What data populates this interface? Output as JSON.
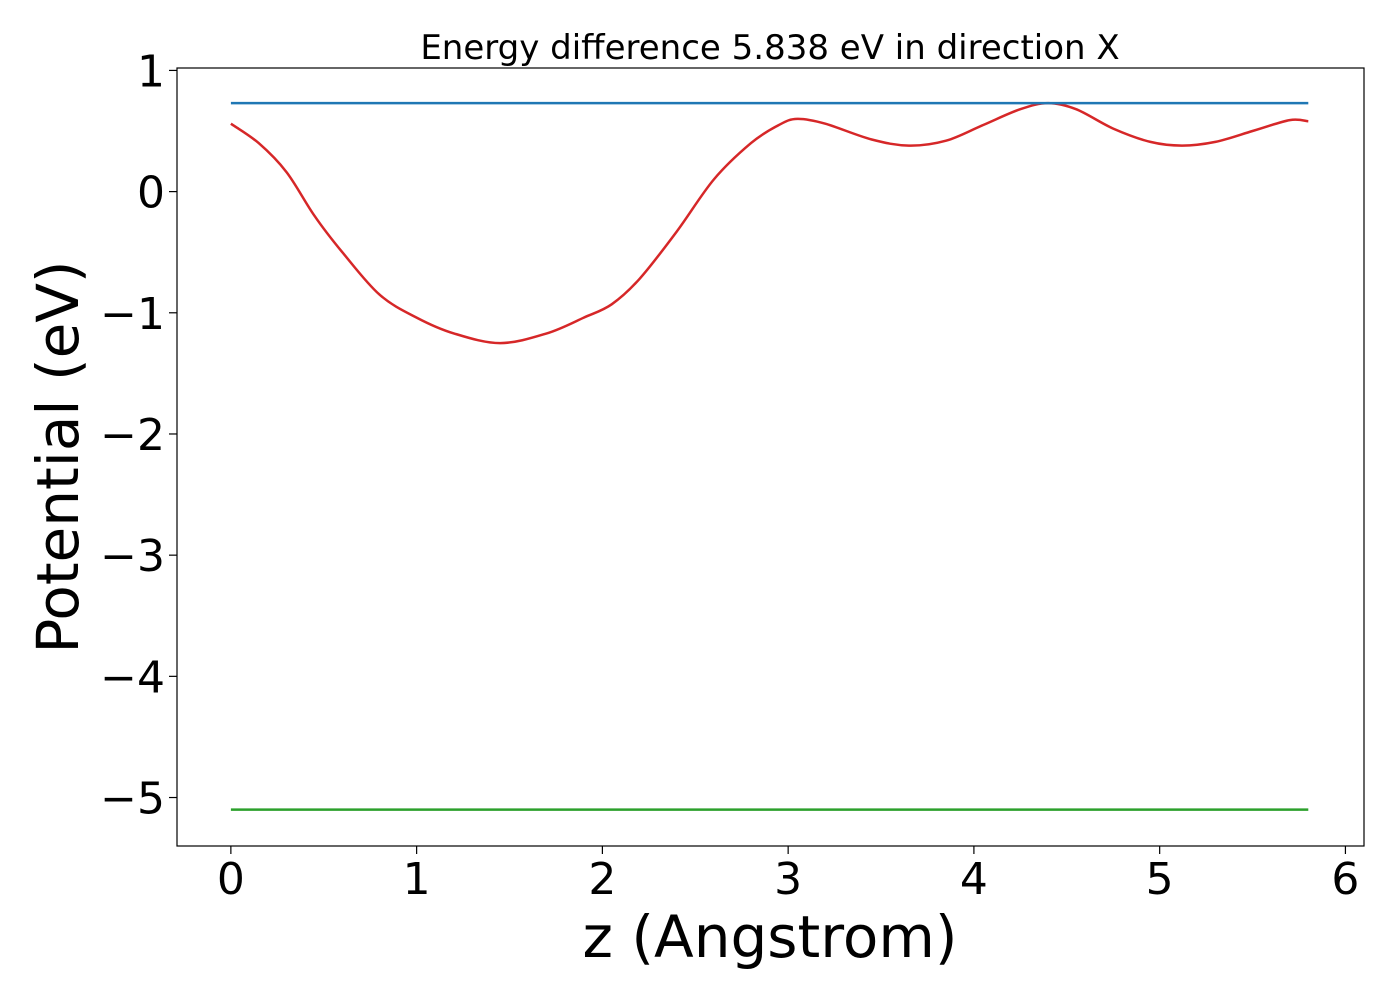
{
  "chart_data": {
    "type": "line",
    "title": "Energy difference 5.838 eV in direction X",
    "xlabel": "z (Angstrom)",
    "ylabel": "Potential (eV)",
    "xlim": [
      -0.29,
      6.1
    ],
    "ylim": [
      -5.4,
      1.02
    ],
    "xticks": [
      0,
      1,
      2,
      3,
      4,
      5,
      6
    ],
    "xtick_labels": [
      "0",
      "1",
      "2",
      "3",
      "4",
      "5",
      "6"
    ],
    "yticks": [
      1,
      0,
      -1,
      -2,
      -3,
      -4,
      -5
    ],
    "ytick_labels": [
      "1",
      "0",
      "−1",
      "−2",
      "−3",
      "−4",
      "−5"
    ],
    "grid": false,
    "series": [
      {
        "color": "#d62728",
        "x": [
          0,
          0.15,
          0.3,
          0.45,
          0.6,
          0.8,
          1.0,
          1.2,
          1.45,
          1.7,
          1.9,
          2.05,
          2.2,
          2.4,
          2.6,
          2.8,
          2.95,
          3.05,
          3.2,
          3.45,
          3.65,
          3.85,
          4.05,
          4.25,
          4.4,
          4.55,
          4.75,
          4.95,
          5.12,
          5.3,
          5.5,
          5.7,
          5.8
        ],
        "y": [
          0.56,
          0.4,
          0.16,
          -0.2,
          -0.5,
          -0.85,
          -1.04,
          -1.17,
          -1.25,
          -1.17,
          -1.04,
          -0.93,
          -0.72,
          -0.33,
          0.1,
          0.4,
          0.55,
          0.6,
          0.56,
          0.43,
          0.38,
          0.42,
          0.55,
          0.68,
          0.73,
          0.68,
          0.52,
          0.41,
          0.38,
          0.41,
          0.5,
          0.59,
          0.58
        ]
      },
      {
        "color": "#1f77b4",
        "x": [
          0,
          5.8
        ],
        "y": [
          0.73,
          0.73
        ]
      },
      {
        "color": "#2ca02c",
        "x": [
          0,
          5.8
        ],
        "y": [
          -5.1,
          -5.1
        ]
      }
    ]
  }
}
